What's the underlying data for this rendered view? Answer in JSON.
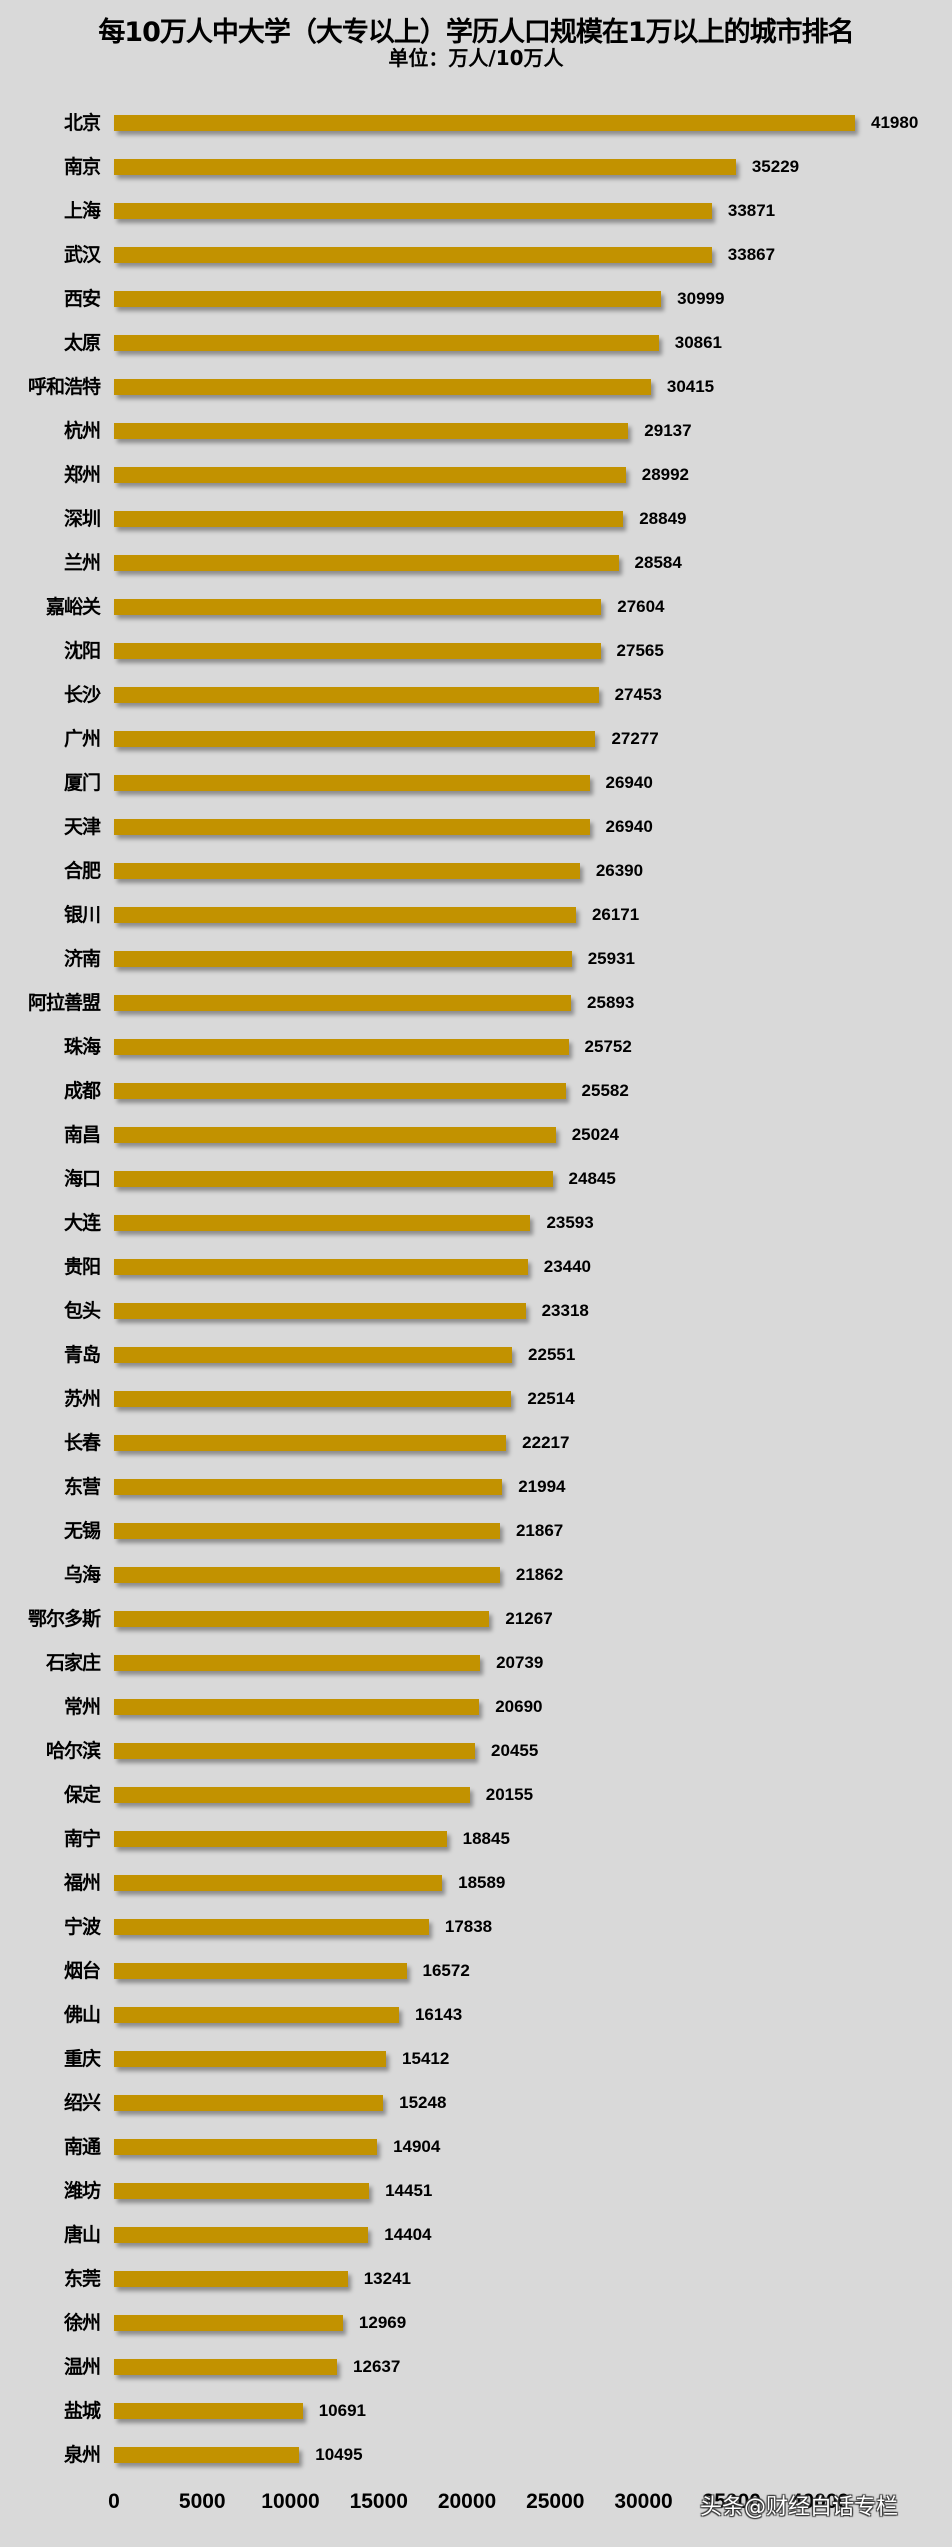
{
  "header": {
    "title": "每10万人中大学（大专以上）学历人口规模在1万以上的城市排名",
    "subtitle": "单位：万人/10万人"
  },
  "watermark": "头条@财经白话专栏",
  "colors": {
    "bar": "#C29200",
    "background": "#D9D9D9"
  },
  "chart_data": {
    "type": "bar",
    "orientation": "horizontal",
    "title": "每10万人中大学（大专以上）学历人口规模在1万以上的城市排名",
    "subtitle": "单位：万人/10万人",
    "xlabel": "",
    "ylabel": "",
    "xlim": [
      0,
      40000
    ],
    "x_ticks": [
      "0",
      "5000",
      "10000",
      "15000",
      "20000",
      "25000",
      "30000",
      "35000",
      "40000"
    ],
    "grid": false,
    "legend": null,
    "categories": [
      "北京",
      "南京",
      "上海",
      "武汉",
      "西安",
      "太原",
      "呼和浩特",
      "杭州",
      "郑州",
      "深圳",
      "兰州",
      "嘉峪关",
      "沈阳",
      "长沙",
      "广州",
      "厦门",
      "天津",
      "合肥",
      "银川",
      "济南",
      "阿拉善盟",
      "珠海",
      "成都",
      "南昌",
      "海口",
      "大连",
      "贵阳",
      "包头",
      "青岛",
      "苏州",
      "长春",
      "东营",
      "无锡",
      "乌海",
      "鄂尔多斯",
      "石家庄",
      "常州",
      "哈尔滨",
      "保定",
      "南宁",
      "福州",
      "宁波",
      "烟台",
      "佛山",
      "重庆",
      "绍兴",
      "南通",
      "潍坊",
      "唐山",
      "东莞",
      "徐州",
      "温州",
      "盐城",
      "泉州"
    ],
    "values": [
      41980,
      35229,
      33871,
      33867,
      30999,
      30861,
      30415,
      29137,
      28992,
      28849,
      28584,
      27604,
      27565,
      27453,
      27277,
      26940,
      26940,
      26390,
      26171,
      25931,
      25893,
      25752,
      25582,
      25024,
      24845,
      23593,
      23440,
      23318,
      22551,
      22514,
      22217,
      21994,
      21867,
      21862,
      21267,
      20739,
      20690,
      20455,
      20155,
      18845,
      18589,
      17838,
      16572,
      16143,
      15412,
      15248,
      14904,
      14451,
      14404,
      13241,
      12969,
      12637,
      10691,
      10495
    ]
  }
}
